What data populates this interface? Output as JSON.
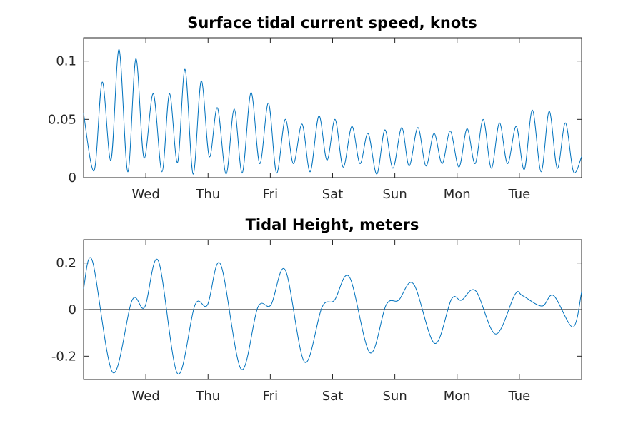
{
  "chart_data": [
    {
      "type": "line",
      "title": "Surface tidal current speed, knots",
      "xlabel": "",
      "ylabel": "",
      "x_tick_labels": [
        "Wed",
        "Thu",
        "Fri",
        "Sat",
        "Sun",
        "Mon",
        "Tue"
      ],
      "x_range_days": [
        0,
        8
      ],
      "x_tick_positions_days": [
        1,
        2,
        3,
        4,
        5,
        6,
        7
      ],
      "y_tick_labels": [
        "0",
        "0.05",
        "0.1"
      ],
      "y_ticks": [
        0,
        0.05,
        0.1
      ],
      "ylim": [
        0,
        0.12
      ],
      "grid": false,
      "color": "#0072bd",
      "series": [
        {
          "x": [
            0.0,
            0.17,
            0.3,
            0.44,
            0.57,
            0.71,
            0.84,
            0.97,
            1.12,
            1.26,
            1.38,
            1.51,
            1.63,
            1.76,
            1.89,
            2.02,
            2.15,
            2.29,
            2.42,
            2.55,
            2.69,
            2.83,
            2.97,
            3.1,
            3.24,
            3.37,
            3.51,
            3.64,
            3.78,
            3.91,
            4.04,
            4.17,
            4.31,
            4.44,
            4.57,
            4.71,
            4.84,
            4.97,
            5.11,
            5.23,
            5.37,
            5.5,
            5.63,
            5.76,
            5.89,
            6.03,
            6.16,
            6.29,
            6.42,
            6.55,
            6.68,
            6.81,
            6.95,
            7.08,
            7.21,
            7.35,
            7.48,
            7.61,
            7.74,
            7.87,
            8.0
          ],
          "y": [
            0.055,
            0.006,
            0.082,
            0.015,
            0.11,
            0.005,
            0.102,
            0.017,
            0.072,
            0.005,
            0.072,
            0.013,
            0.093,
            0.003,
            0.083,
            0.018,
            0.06,
            0.003,
            0.059,
            0.004,
            0.073,
            0.012,
            0.064,
            0.004,
            0.05,
            0.012,
            0.046,
            0.005,
            0.053,
            0.015,
            0.05,
            0.009,
            0.044,
            0.012,
            0.038,
            0.003,
            0.041,
            0.008,
            0.043,
            0.01,
            0.043,
            0.01,
            0.038,
            0.012,
            0.04,
            0.009,
            0.042,
            0.012,
            0.05,
            0.008,
            0.047,
            0.012,
            0.044,
            0.007,
            0.058,
            0.005,
            0.057,
            0.008,
            0.047,
            0.005,
            0.018
          ]
        }
      ]
    },
    {
      "type": "line",
      "title": "Tidal Height, meters",
      "xlabel": "",
      "ylabel": "",
      "x_tick_labels": [
        "Wed",
        "Thu",
        "Fri",
        "Sat",
        "Sun",
        "Mon",
        "Tue"
      ],
      "x_range_days": [
        0,
        8
      ],
      "x_tick_positions_days": [
        1,
        2,
        3,
        4,
        5,
        6,
        7
      ],
      "y_tick_labels": [
        "-0.2",
        "0",
        "0.2"
      ],
      "y_ticks": [
        -0.2,
        0,
        0.2
      ],
      "ylim": [
        -0.3,
        0.3
      ],
      "zero_line": true,
      "grid": false,
      "color": "#0072bd",
      "series": [
        {
          "x": [
            0.0,
            0.14,
            0.47,
            0.78,
            0.98,
            1.2,
            1.51,
            1.79,
            1.99,
            2.2,
            2.53,
            2.8,
            3.01,
            3.24,
            3.55,
            3.83,
            4.03,
            4.27,
            4.6,
            4.86,
            5.06,
            5.3,
            5.64,
            5.91,
            6.07,
            6.3,
            6.62,
            6.93,
            7.05,
            7.36,
            7.55,
            7.86,
            8.0
          ],
          "y": [
            0.09,
            0.21,
            -0.27,
            0.04,
            0.01,
            0.21,
            -0.275,
            0.02,
            0.02,
            0.195,
            -0.255,
            0.01,
            0.02,
            0.17,
            -0.225,
            0.01,
            0.04,
            0.14,
            -0.185,
            0.02,
            0.04,
            0.11,
            -0.145,
            0.045,
            0.04,
            0.08,
            -0.105,
            0.065,
            0.06,
            0.015,
            0.06,
            -0.075,
            0.075
          ]
        }
      ]
    }
  ]
}
